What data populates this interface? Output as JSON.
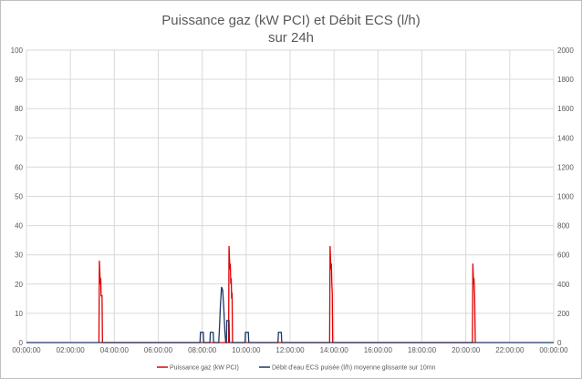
{
  "chart_data": {
    "type": "line",
    "title_lines": [
      "Puissance gaz (kW PCI) et Débit ECS (l/h)",
      "sur 24h"
    ],
    "x_ticks": [
      "00:00:00",
      "02:00:00",
      "04:00:00",
      "06:00:00",
      "08:00:00",
      "10:00:00",
      "12:00:00",
      "14:00:00",
      "16:00:00",
      "18:00:00",
      "20:00:00",
      "22:00:00",
      "00:00:00"
    ],
    "x_range_hours": [
      0,
      24
    ],
    "y_left": {
      "ticks": [
        0,
        10,
        20,
        30,
        40,
        50,
        60,
        70,
        80,
        90,
        100
      ],
      "range": [
        0,
        100
      ]
    },
    "y_right": {
      "ticks": [
        0,
        200,
        400,
        600,
        800,
        1000,
        1200,
        1400,
        1600,
        1800,
        2000
      ],
      "range": [
        0,
        2000
      ]
    },
    "grid": true,
    "legend_position": "bottom",
    "series": [
      {
        "name": "Puissance gaz (kW PCI)",
        "color": "#e00000",
        "axis": "left",
        "points": [
          [
            3.3,
            0
          ],
          [
            3.32,
            28
          ],
          [
            3.36,
            20
          ],
          [
            3.38,
            22
          ],
          [
            3.4,
            16
          ],
          [
            3.44,
            16
          ],
          [
            3.46,
            0
          ],
          [
            9.2,
            0
          ],
          [
            9.22,
            33
          ],
          [
            9.26,
            25
          ],
          [
            9.28,
            27
          ],
          [
            9.3,
            20
          ],
          [
            9.32,
            22
          ],
          [
            9.34,
            15
          ],
          [
            9.36,
            17
          ],
          [
            9.38,
            0
          ],
          [
            13.8,
            0
          ],
          [
            13.82,
            33
          ],
          [
            13.86,
            25
          ],
          [
            13.88,
            27
          ],
          [
            13.9,
            20
          ],
          [
            13.92,
            17
          ],
          [
            13.94,
            0
          ],
          [
            20.3,
            0
          ],
          [
            20.32,
            27
          ],
          [
            20.35,
            20
          ],
          [
            20.37,
            22
          ],
          [
            20.4,
            16
          ],
          [
            20.43,
            0
          ]
        ]
      },
      {
        "name": "Débit d'eau ECS puisée (l/h) moyenne glissante sur 10mn",
        "color": "#1f3864",
        "axis": "right",
        "points": [
          [
            0,
            0
          ],
          [
            7.9,
            0
          ],
          [
            7.92,
            70
          ],
          [
            8.05,
            70
          ],
          [
            8.07,
            0
          ],
          [
            8.35,
            0
          ],
          [
            8.37,
            70
          ],
          [
            8.5,
            70
          ],
          [
            8.52,
            0
          ],
          [
            8.75,
            0
          ],
          [
            8.78,
            80
          ],
          [
            8.83,
            260
          ],
          [
            8.88,
            380
          ],
          [
            8.93,
            360
          ],
          [
            8.98,
            240
          ],
          [
            9.03,
            80
          ],
          [
            9.07,
            0
          ],
          [
            9.1,
            0
          ],
          [
            9.12,
            150
          ],
          [
            9.22,
            150
          ],
          [
            9.24,
            0
          ],
          [
            9.95,
            0
          ],
          [
            9.97,
            70
          ],
          [
            10.1,
            70
          ],
          [
            10.12,
            0
          ],
          [
            11.45,
            0
          ],
          [
            11.47,
            70
          ],
          [
            11.6,
            70
          ],
          [
            11.62,
            0
          ],
          [
            24,
            0
          ]
        ]
      }
    ]
  }
}
